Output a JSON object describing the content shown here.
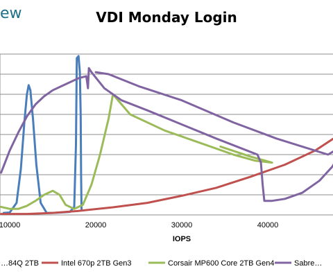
{
  "brand": {
    "text": "ew"
  },
  "chart_data": {
    "type": "line",
    "title": "VDI Monday Login",
    "xlabel": "IOPS",
    "ylabel": "",
    "x_ticks": [
      "10000",
      "20000",
      "30000",
      "40000"
    ],
    "xlim": [
      9000,
      49000
    ],
    "ylim": [
      0,
      8.0
    ],
    "gridlines": true,
    "legend_position": "bottom",
    "series": [
      {
        "name": "…84Q 2TB",
        "color": "#4a7ebb",
        "points": [
          [
            9300,
            0.1
          ],
          [
            10000,
            0.12
          ],
          [
            10800,
            0.6
          ],
          [
            11300,
            2.3
          ],
          [
            11700,
            4.6
          ],
          [
            12000,
            6.0
          ],
          [
            12200,
            6.45
          ],
          [
            12400,
            6.2
          ],
          [
            12700,
            4.8
          ],
          [
            13100,
            2.5
          ],
          [
            13600,
            0.6
          ],
          [
            14300,
            0.1
          ],
          [
            15000,
            0.1
          ],
          [
            16000,
            0.12
          ],
          [
            17000,
            0.15
          ],
          [
            17500,
            0.4
          ],
          [
            17700,
            3.5
          ],
          [
            17800,
            7.8
          ],
          [
            18000,
            7.9
          ],
          [
            18150,
            7.1
          ],
          [
            18250,
            5.0
          ],
          [
            18300,
            2.0
          ],
          [
            18350,
            0.3
          ]
        ]
      },
      {
        "name": "Intel 670p 2TB Gen3",
        "color": "#c0504d",
        "points": [
          [
            9000,
            0.05
          ],
          [
            12000,
            0.05
          ],
          [
            15000,
            0.1
          ],
          [
            18000,
            0.2
          ],
          [
            22000,
            0.38
          ],
          [
            26000,
            0.6
          ],
          [
            30000,
            0.95
          ],
          [
            34000,
            1.35
          ],
          [
            38000,
            1.9
          ],
          [
            42000,
            2.5
          ],
          [
            45500,
            3.2
          ],
          [
            48000,
            3.9
          ],
          [
            49000,
            4.2
          ]
        ]
      },
      {
        "name": "Corsair MP600 Core 2TB Gen4",
        "color": "#9bbb59",
        "points": [
          [
            9000,
            0.4
          ],
          [
            10000,
            0.3
          ],
          [
            11000,
            0.3
          ],
          [
            12000,
            0.45
          ],
          [
            13000,
            0.7
          ],
          [
            14000,
            1.0
          ],
          [
            15000,
            1.2
          ],
          [
            15800,
            1.0
          ],
          [
            16500,
            0.5
          ],
          [
            17500,
            0.3
          ],
          [
            18500,
            0.5
          ],
          [
            19500,
            1.5
          ],
          [
            20500,
            3.0
          ],
          [
            21500,
            4.8
          ],
          [
            22000,
            6.0
          ],
          [
            24000,
            5.0
          ],
          [
            28000,
            4.2
          ],
          [
            32000,
            3.6
          ],
          [
            36000,
            3.0
          ],
          [
            38500,
            2.7
          ],
          [
            40500,
            2.6
          ],
          [
            38000,
            2.9
          ],
          [
            34500,
            3.4
          ]
        ]
      },
      {
        "name": "Sabre…",
        "color": "#8064a2",
        "points": [
          [
            9000,
            2.1
          ],
          [
            10000,
            3.2
          ],
          [
            11000,
            4.1
          ],
          [
            12000,
            4.9
          ],
          [
            13000,
            5.5
          ],
          [
            14000,
            5.9
          ],
          [
            15000,
            6.2
          ],
          [
            16000,
            6.4
          ],
          [
            17000,
            6.6
          ],
          [
            18000,
            6.8
          ],
          [
            18900,
            6.9
          ],
          [
            19100,
            6.3
          ],
          [
            19200,
            7.3
          ],
          [
            19500,
            7.1
          ],
          [
            21000,
            6.3
          ],
          [
            23000,
            5.7
          ],
          [
            26000,
            5.2
          ],
          [
            30000,
            4.5
          ],
          [
            34000,
            3.8
          ],
          [
            37000,
            3.3
          ],
          [
            38800,
            3.0
          ],
          [
            39200,
            2.6
          ],
          [
            39400,
            1.5
          ],
          [
            39600,
            0.7
          ],
          [
            40500,
            0.7
          ],
          [
            42000,
            0.8
          ],
          [
            44000,
            1.1
          ],
          [
            46000,
            1.7
          ],
          [
            47500,
            2.4
          ],
          [
            49000,
            3.5
          ],
          [
            47000,
            3.0
          ],
          [
            44000,
            3.4
          ],
          [
            41000,
            3.8
          ],
          [
            36000,
            4.6
          ],
          [
            30000,
            5.7
          ],
          [
            25000,
            6.4
          ],
          [
            21500,
            7.0
          ],
          [
            20000,
            7.1
          ]
        ]
      }
    ]
  }
}
